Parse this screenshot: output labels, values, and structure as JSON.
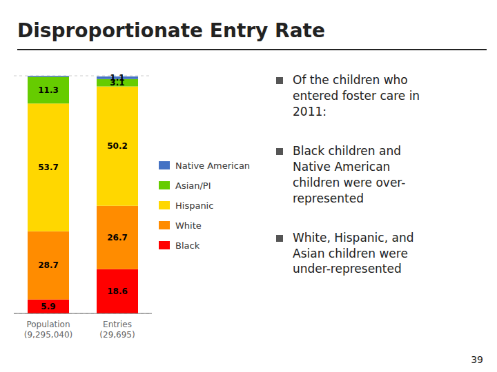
{
  "chart_data": {
    "type": "bar",
    "title": "Disproportionate Entry Rate",
    "categories": [
      "Population\n(9,295,040)",
      "Entries\n(29,695)"
    ],
    "series": [
      {
        "name": "Black",
        "color": "#ff0000",
        "values": [
          5.9,
          18.6
        ]
      },
      {
        "name": "White",
        "color": "#ff8c00",
        "values": [
          28.7,
          26.7
        ]
      },
      {
        "name": "Hispanic",
        "color": "#ffd700",
        "values": [
          53.7,
          50.2
        ]
      },
      {
        "name": "Asian/PI",
        "color": "#66cc00",
        "values": [
          11.3,
          3.1
        ]
      },
      {
        "name": "Native American",
        "color": "#4472c4",
        "values": [
          0.4,
          1.1
        ],
        "value_labels": [
          null,
          "1.1"
        ]
      }
    ],
    "stacked": true,
    "data_labels": true,
    "ylim": [
      0,
      100
    ],
    "yticks": [
      0,
      10,
      20,
      30,
      40,
      50,
      60,
      70,
      80,
      90,
      100
    ],
    "grid": true,
    "tick_labels": "x",
    "legend": "right",
    "annotations": [
      "Of the children who\nentered foster care in\n2011:",
      "Black children and\nNative American\nchildren were over-\nrepresented",
      "White, Hispanic, and\nAsian children were\nunder-represented",
      "39"
    ]
  }
}
